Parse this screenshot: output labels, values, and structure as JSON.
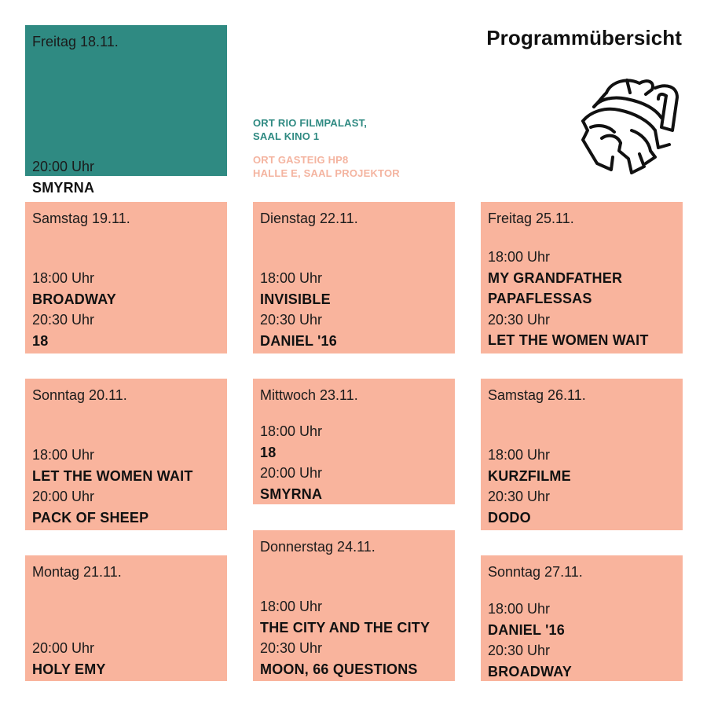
{
  "title": "Programmübersicht",
  "colors": {
    "rio": "#2f8a82",
    "gasteig": "#f9b49d"
  },
  "legend": {
    "rio": [
      "ORT RIO FILMPALAST,",
      "SAAL KINO 1"
    ],
    "gasteig": [
      "ORT GASTEIG HP8",
      "HALLE E, SAAL PROJEKTOR"
    ]
  },
  "logo_icon": "film-reel-face-logo",
  "days": [
    {
      "day": "Freitag 18.11.",
      "venue": "rio",
      "lines": [
        {
          "t": "time",
          "v": "20:00 Uhr"
        },
        {
          "t": "film",
          "v": "SMYRNA"
        }
      ]
    },
    {
      "day": "Samstag 19.11.",
      "venue": "gasteig",
      "lines": [
        {
          "t": "time",
          "v": "18:00 Uhr"
        },
        {
          "t": "film",
          "v": "BROADWAY"
        },
        {
          "t": "time",
          "v": "20:30 Uhr"
        },
        {
          "t": "film",
          "v": "18"
        }
      ]
    },
    {
      "day": "Sonntag 20.11.",
      "venue": "gasteig",
      "lines": [
        {
          "t": "time",
          "v": "18:00 Uhr"
        },
        {
          "t": "film",
          "v": "LET THE WOMEN WAIT"
        },
        {
          "t": "time",
          "v": "20:00 Uhr"
        },
        {
          "t": "film",
          "v": "PACK OF SHEEP"
        }
      ]
    },
    {
      "day": "Montag 21.11.",
      "venue": "gasteig",
      "lines": [
        {
          "t": "time",
          "v": "20:00 Uhr"
        },
        {
          "t": "film",
          "v": "HOLY EMY"
        }
      ]
    },
    {
      "day": "Dienstag 22.11.",
      "venue": "gasteig",
      "lines": [
        {
          "t": "time",
          "v": "18:00 Uhr"
        },
        {
          "t": "film",
          "v": "INVISIBLE"
        },
        {
          "t": "time",
          "v": "20:30 Uhr"
        },
        {
          "t": "film",
          "v": "DANIEL '16"
        }
      ]
    },
    {
      "day": "Mittwoch 23.11.",
      "venue": "gasteig",
      "lines": [
        {
          "t": "time",
          "v": "18:00 Uhr"
        },
        {
          "t": "film",
          "v": "18"
        },
        {
          "t": "time",
          "v": "20:00 Uhr"
        },
        {
          "t": "film",
          "v": "SMYRNA"
        }
      ]
    },
    {
      "day": "Donnerstag 24.11.",
      "venue": "gasteig",
      "lines": [
        {
          "t": "time",
          "v": "18:00 Uhr"
        },
        {
          "t": "film",
          "v": "THE CITY AND THE CITY"
        },
        {
          "t": "time",
          "v": "20:30 Uhr"
        },
        {
          "t": "film",
          "v": "MOON, 66 QUESTIONS"
        }
      ]
    },
    {
      "day": "Freitag 25.11.",
      "venue": "gasteig",
      "lines": [
        {
          "t": "time",
          "v": "18:00 Uhr"
        },
        {
          "t": "film",
          "v": "MY GRANDFATHER"
        },
        {
          "t": "film",
          "v": "PAPAFLESSAS"
        },
        {
          "t": "time",
          "v": "20:30 Uhr"
        },
        {
          "t": "film",
          "v": "LET THE WOMEN WAIT"
        }
      ]
    },
    {
      "day": "Samstag 26.11.",
      "venue": "gasteig",
      "lines": [
        {
          "t": "time",
          "v": "18:00 Uhr"
        },
        {
          "t": "film",
          "v": "KURZFILME"
        },
        {
          "t": "time",
          "v": "20:30 Uhr"
        },
        {
          "t": "film",
          "v": "DODO"
        }
      ]
    },
    {
      "day": "Sonntag 27.11.",
      "venue": "gasteig",
      "lines": [
        {
          "t": "time",
          "v": "18:00 Uhr"
        },
        {
          "t": "film",
          "v": "DANIEL '16"
        },
        {
          "t": "time",
          "v": "20:30 Uhr"
        },
        {
          "t": "film",
          "v": "BROADWAY"
        }
      ]
    }
  ]
}
